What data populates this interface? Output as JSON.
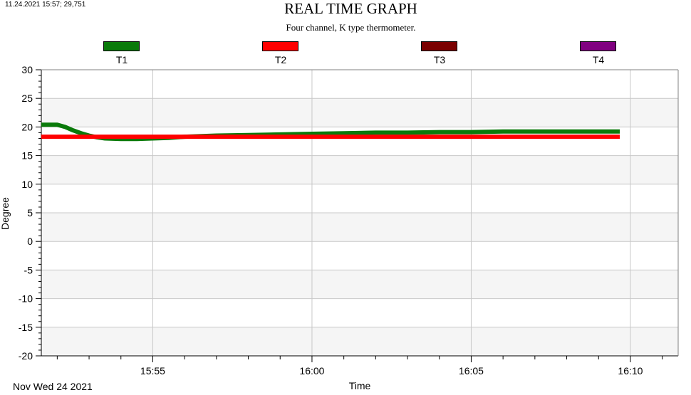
{
  "status_text": "11.24.2021 15:57; 29,751",
  "colors": {
    "T1": "#0a7a0a",
    "T2": "#ff0000",
    "T3": "#7a0000",
    "T4": "#800080",
    "band": "#f5f5f5",
    "grid": "#c8c8c8"
  },
  "chart_data": {
    "type": "line",
    "title": "REAL TIME GRAPH",
    "subtitle": "Four channel, K type thermometer.",
    "xlabel": "Time",
    "ylabel": "Degree",
    "date_label": "Nov Wed 24 2021",
    "ylim": [
      -20,
      30
    ],
    "yticks": [
      "30",
      "25",
      "20",
      "15",
      "10",
      "5",
      "0",
      "-5",
      "-10",
      "-15",
      "-20"
    ],
    "xlim": [
      "15:51:30",
      "16:11:30"
    ],
    "xticks": [
      "15:55",
      "16:00",
      "16:05",
      "16:10"
    ],
    "grid": true,
    "legend_placement": "top",
    "series": [
      {
        "name": "T1",
        "color": "#0a7a0a",
        "points": [
          [
            "15:51:30",
            20.4
          ],
          [
            "15:52:00",
            20.4
          ],
          [
            "15:52:15",
            20.0
          ],
          [
            "15:52:30",
            19.4
          ],
          [
            "15:52:45",
            18.9
          ],
          [
            "15:53:00",
            18.5
          ],
          [
            "15:53:15",
            18.2
          ],
          [
            "15:53:30",
            18.0
          ],
          [
            "15:54:00",
            17.9
          ],
          [
            "15:54:30",
            17.9
          ],
          [
            "15:55:00",
            18.0
          ],
          [
            "15:55:30",
            18.1
          ],
          [
            "15:56:00",
            18.3
          ],
          [
            "15:57:00",
            18.5
          ],
          [
            "15:58:00",
            18.6
          ],
          [
            "15:59:00",
            18.7
          ],
          [
            "16:00:00",
            18.8
          ],
          [
            "16:01:00",
            18.9
          ],
          [
            "16:02:00",
            19.0
          ],
          [
            "16:03:00",
            19.0
          ],
          [
            "16:04:00",
            19.1
          ],
          [
            "16:05:00",
            19.1
          ],
          [
            "16:06:00",
            19.2
          ],
          [
            "16:07:00",
            19.2
          ],
          [
            "16:08:00",
            19.2
          ],
          [
            "16:09:00",
            19.2
          ],
          [
            "16:09:40",
            19.2
          ]
        ]
      },
      {
        "name": "T2",
        "color": "#ff0000",
        "points": [
          [
            "15:51:30",
            18.3
          ],
          [
            "16:09:40",
            18.3
          ]
        ]
      },
      {
        "name": "T3",
        "color": "#7a0000",
        "points": []
      },
      {
        "name": "T4",
        "color": "#800080",
        "points": []
      }
    ]
  }
}
